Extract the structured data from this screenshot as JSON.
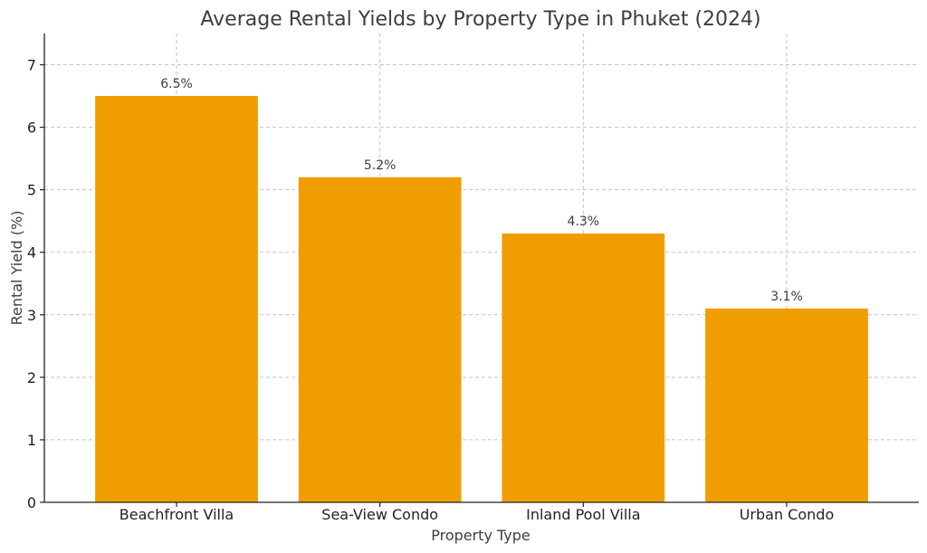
{
  "chart_data": {
    "type": "bar",
    "title": "Average Rental Yields by Property Type in Phuket (2024)",
    "xlabel": "Property Type",
    "ylabel": "Rental Yield (%)",
    "categories": [
      "Beachfront Villa",
      "Sea-View Condo",
      "Inland Pool Villa",
      "Urban Condo"
    ],
    "values": [
      6.5,
      5.2,
      4.3,
      3.1
    ],
    "data_labels": [
      "6.5%",
      "5.2%",
      "4.3%",
      "3.1%"
    ],
    "ylim": [
      0,
      7.5
    ],
    "yticks": [
      0,
      1,
      2,
      3,
      4,
      5,
      6,
      7
    ],
    "grid": true,
    "bar_color": "#f09d00"
  }
}
